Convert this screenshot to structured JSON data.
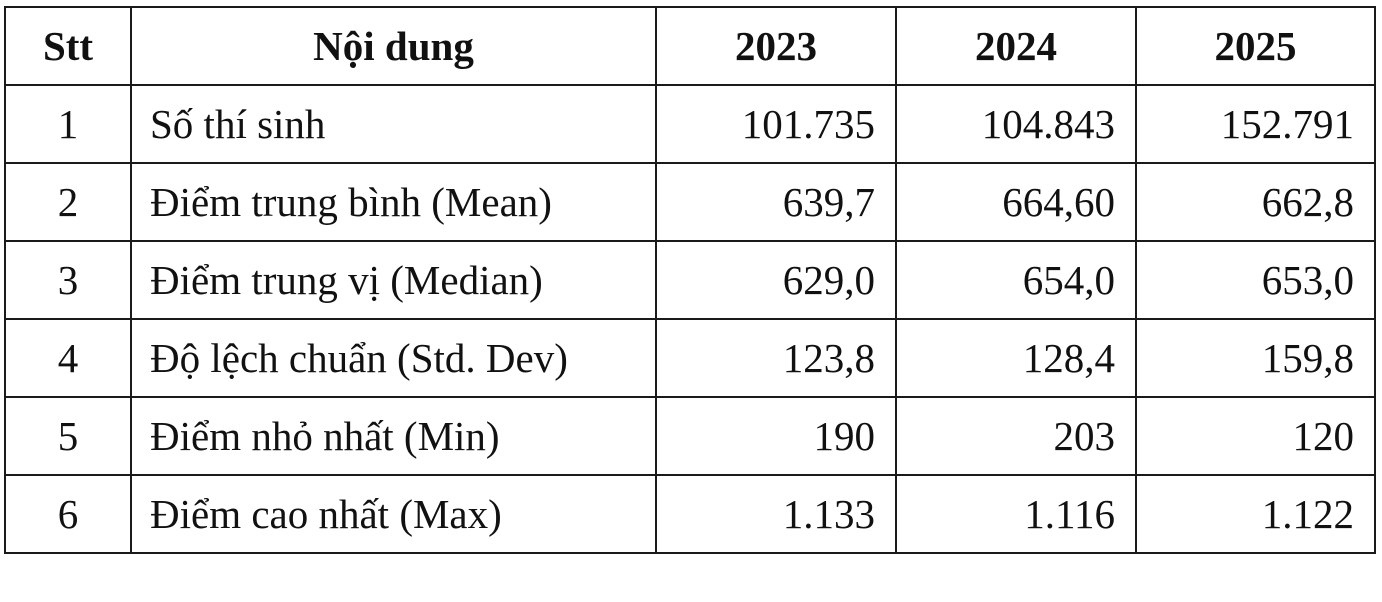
{
  "table": {
    "headers": {
      "stt": "Stt",
      "content": "Nội dung",
      "years": [
        "2023",
        "2024",
        "2025"
      ]
    },
    "rows": [
      {
        "stt": "1",
        "content": "Số thí sinh",
        "values": [
          "101.735",
          "104.843",
          "152.791"
        ]
      },
      {
        "stt": "2",
        "content": "Điểm trung bình (Mean)",
        "values": [
          "639,7",
          "664,60",
          "662,8"
        ]
      },
      {
        "stt": "3",
        "content": "Điểm trung vị (Median)",
        "values": [
          "629,0",
          "654,0",
          "653,0"
        ]
      },
      {
        "stt": "4",
        "content": "Độ lệch chuẩn (Std. Dev)",
        "values": [
          "123,8",
          "128,4",
          "159,8"
        ]
      },
      {
        "stt": "5",
        "content": "Điểm nhỏ nhất (Min)",
        "values": [
          "190",
          "203",
          "120"
        ]
      },
      {
        "stt": "6",
        "content": "Điểm cao nhất (Max)",
        "values": [
          "1.133",
          "1.116",
          "1.122"
        ]
      }
    ]
  }
}
